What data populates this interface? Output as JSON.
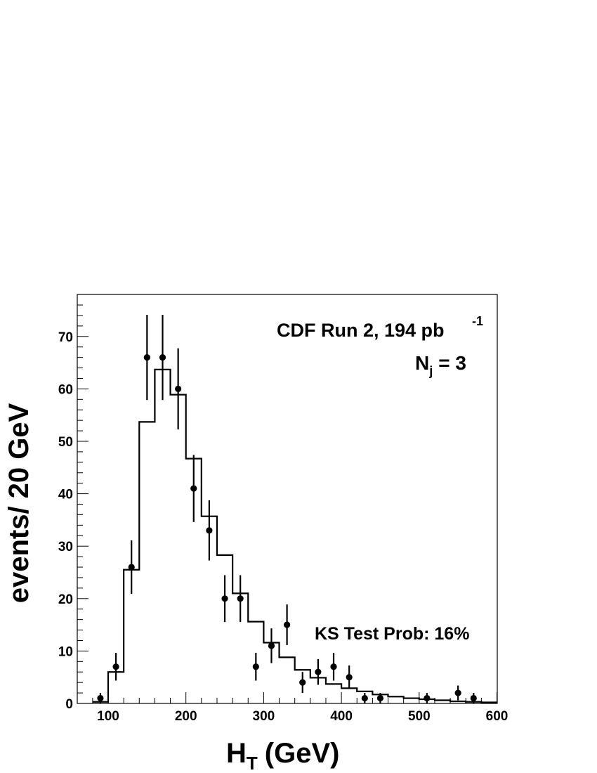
{
  "chart_data": {
    "type": "histogram",
    "xlabel_main": "H",
    "xlabel_sub": "T",
    "xlabel_unit": "(GeV)",
    "ylabel": "events/ 20 GeV",
    "xlim": [
      60,
      600
    ],
    "ylim": [
      0,
      78
    ],
    "x_ticks": [
      100,
      200,
      300,
      400,
      500,
      600
    ],
    "y_ticks": [
      0,
      10,
      20,
      30,
      40,
      50,
      60,
      70
    ],
    "grid": false,
    "annotations": {
      "experiment": "CDF Run 2, 194 pb",
      "experiment_sup": "-1",
      "njets_main": "N",
      "njets_sub": "j",
      "njets_value": "= 3",
      "ks_test": "KS Test Prob: 16%"
    },
    "prediction": {
      "style": "step-histogram",
      "bin_edges": [
        80,
        100,
        120,
        140,
        160,
        180,
        200,
        220,
        240,
        260,
        280,
        300,
        320,
        340,
        360,
        380,
        400,
        420,
        440,
        460,
        480,
        500,
        520,
        540,
        560,
        580,
        600
      ],
      "values": [
        0.3,
        6.0,
        25.5,
        53.7,
        63.7,
        58.9,
        46.7,
        35.7,
        28.3,
        21.0,
        15.6,
        11.6,
        8.8,
        6.4,
        4.9,
        3.7,
        2.9,
        2.3,
        1.7,
        1.3,
        1.0,
        0.8,
        0.6,
        0.4,
        0.3,
        0.2
      ]
    },
    "data": {
      "style": "points-with-errors",
      "x": [
        90,
        110,
        130,
        150,
        170,
        190,
        210,
        230,
        250,
        270,
        290,
        310,
        330,
        350,
        370,
        390,
        410,
        430,
        450,
        510,
        550,
        570
      ],
      "y": [
        1,
        7,
        26,
        66,
        66,
        60,
        41,
        33,
        20,
        20,
        7,
        11,
        15,
        4,
        6,
        7,
        5,
        1,
        1,
        1,
        2,
        1
      ]
    }
  }
}
